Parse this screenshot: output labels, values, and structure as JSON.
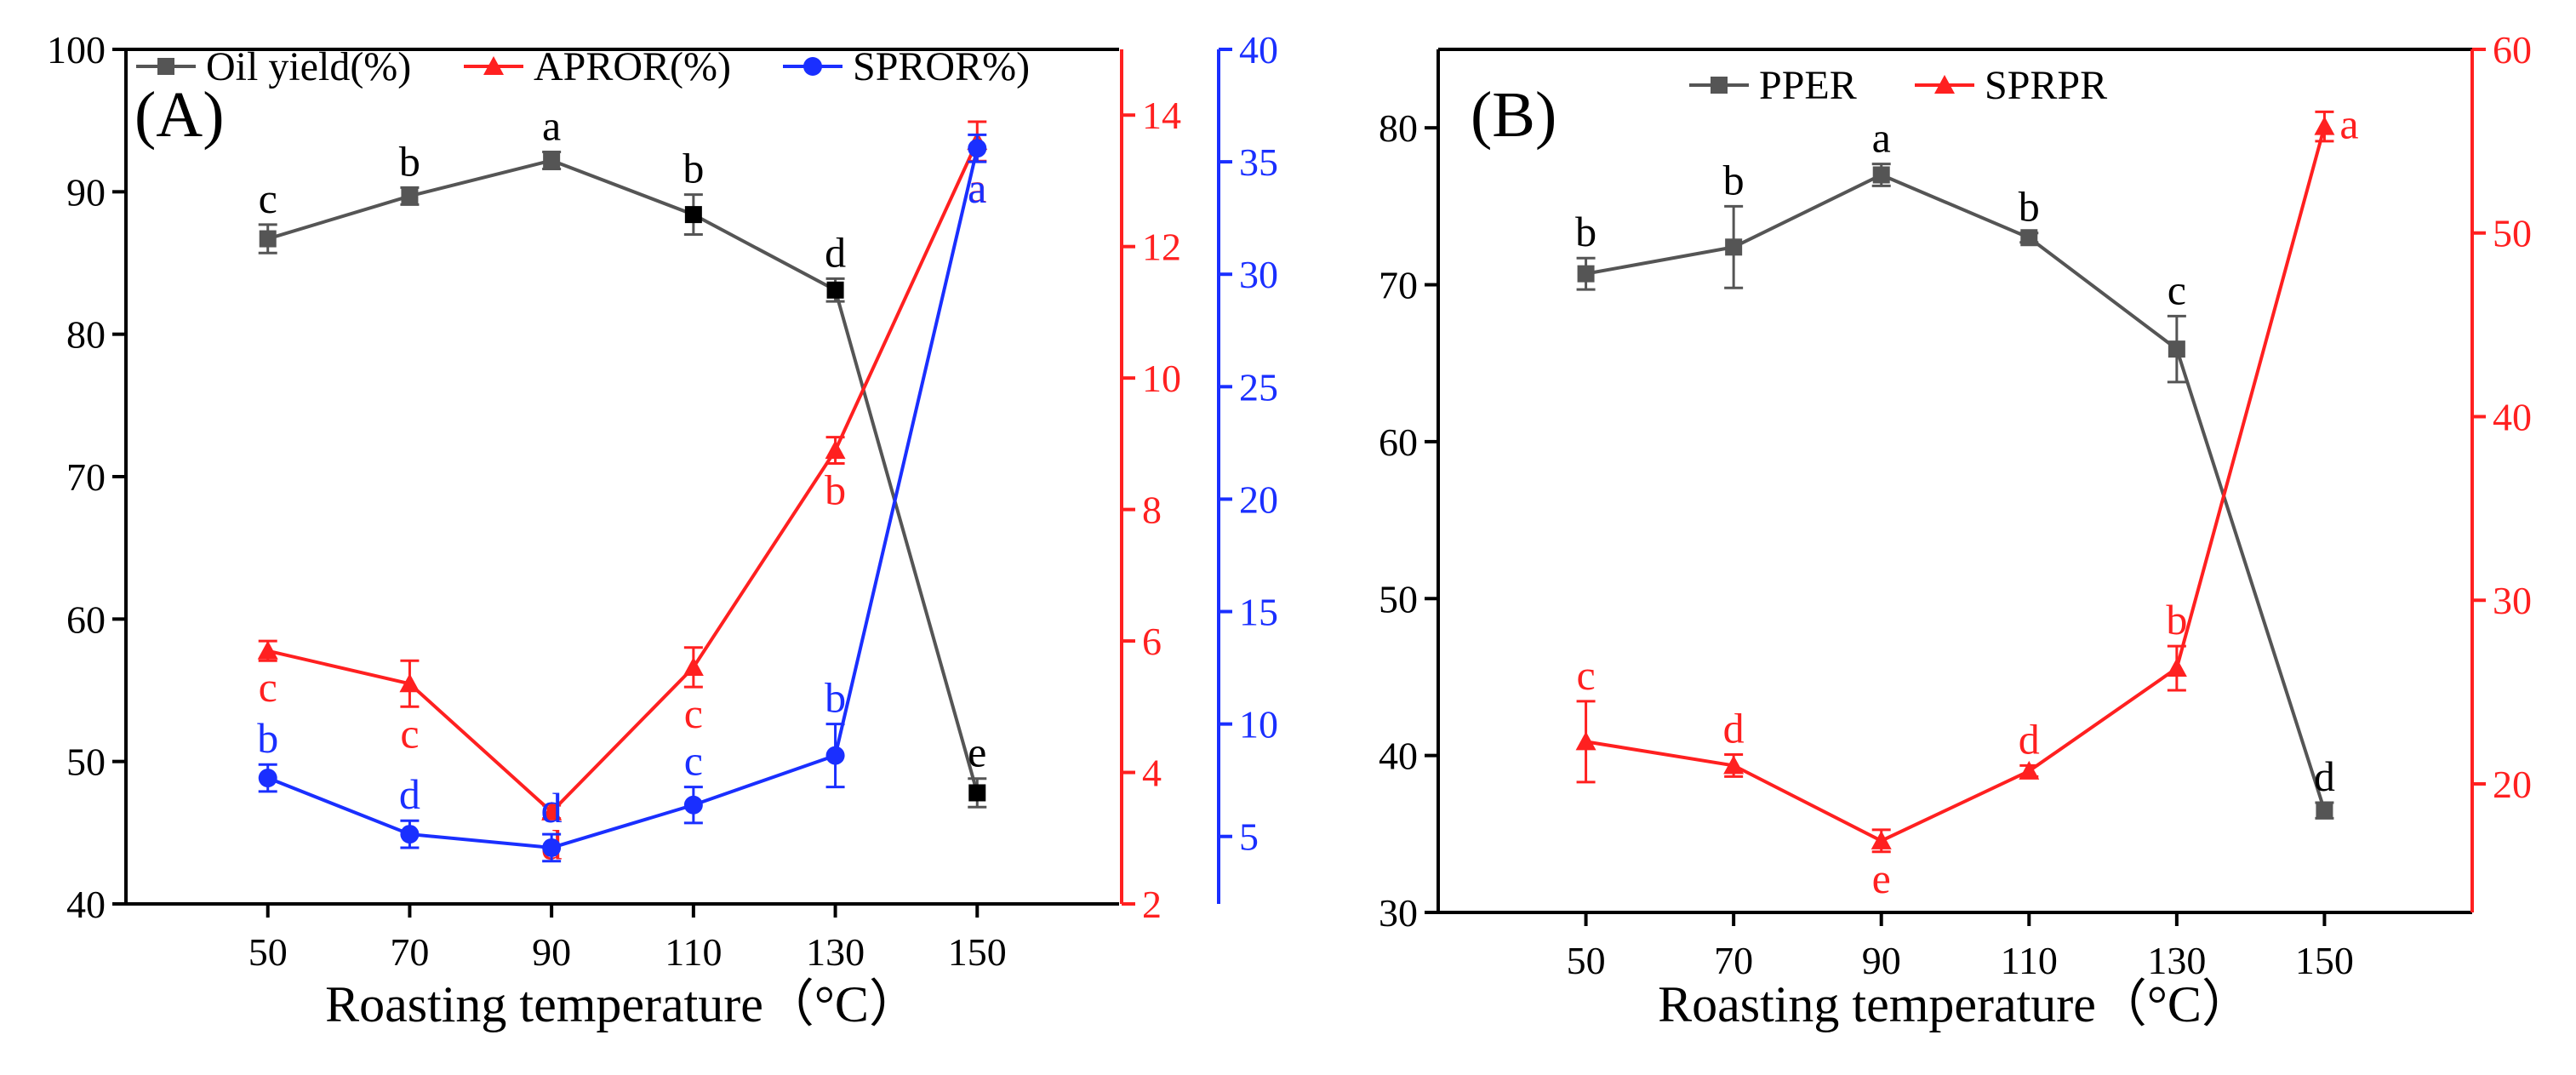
{
  "chart_data": [
    {
      "panel": "(A)",
      "type": "line",
      "xlabel": "Roasting temperature（°C）",
      "categories": [
        50,
        70,
        90,
        110,
        130,
        150
      ],
      "xlim": [
        30,
        170
      ],
      "axes": [
        {
          "id": "y1",
          "side": "left",
          "ylim": [
            40,
            100
          ],
          "ticks": [
            40,
            50,
            60,
            70,
            80,
            90,
            100
          ],
          "color": "#000000"
        },
        {
          "id": "y2",
          "side": "right",
          "ylim": [
            2,
            15
          ],
          "ticks": [
            2,
            4,
            6,
            8,
            10,
            12,
            14
          ],
          "color": "#ff2020"
        },
        {
          "id": "y3",
          "side": "right",
          "ylim": [
            2,
            40
          ],
          "ticks": [
            5,
            10,
            15,
            20,
            25,
            30,
            35,
            40
          ],
          "color": "#1a2fff"
        }
      ],
      "series": [
        {
          "name": "Oil yield(%)",
          "axis": "y1",
          "color": "#555555",
          "marker": "square",
          "values": [
            86.7,
            89.7,
            92.2,
            88.4,
            83.1,
            47.8
          ],
          "errors": [
            1.0,
            0.6,
            0.6,
            1.4,
            0.8,
            1.0
          ],
          "letters": [
            "c",
            "b",
            "a",
            "b",
            "d",
            "e"
          ]
        },
        {
          "name": "APROR(%)",
          "axis": "y2",
          "color": "#ff2020",
          "marker": "triangle",
          "values": [
            5.85,
            5.35,
            3.4,
            5.6,
            8.9,
            13.6
          ],
          "errors": [
            0.15,
            0.35,
            0.1,
            0.3,
            0.2,
            0.3
          ],
          "letters": [
            "c",
            "c",
            "d",
            "c",
            "b",
            "a"
          ]
        },
        {
          "name": "SPROR%)",
          "axis": "y3",
          "color": "#1a2fff",
          "marker": "circle",
          "values": [
            7.6,
            5.1,
            4.5,
            6.4,
            8.6,
            35.6
          ],
          "errors": [
            0.6,
            0.6,
            0.6,
            0.8,
            1.4,
            0.6
          ],
          "letters": [
            "b",
            "d",
            "d",
            "c",
            "b",
            "a"
          ]
        }
      ]
    },
    {
      "panel": "(B)",
      "type": "line",
      "xlabel": "Roasting temperature（°C）",
      "categories": [
        50,
        70,
        90,
        110,
        130,
        150
      ],
      "xlim": [
        30,
        170
      ],
      "axes": [
        {
          "id": "y1",
          "side": "left",
          "ylim": [
            30,
            85
          ],
          "ticks": [
            30,
            40,
            50,
            60,
            70,
            80
          ],
          "color": "#000000"
        },
        {
          "id": "y2",
          "side": "right",
          "ylim": [
            13,
            60
          ],
          "ticks": [
            20,
            30,
            40,
            50,
            60
          ],
          "color": "#ff2020"
        }
      ],
      "series": [
        {
          "name": "PPER",
          "axis": "y1",
          "color": "#555555",
          "marker": "square",
          "values": [
            70.7,
            72.4,
            77.0,
            73.0,
            65.9,
            36.5
          ],
          "errors": [
            1.0,
            2.6,
            0.7,
            0.3,
            2.1,
            0.5
          ],
          "letters": [
            "b",
            "b",
            "a",
            "b",
            "c",
            "d"
          ]
        },
        {
          "name": "SPRPR",
          "axis": "y2",
          "color": "#ff2020",
          "marker": "triangle",
          "values": [
            22.3,
            21.0,
            16.9,
            20.7,
            26.3,
            55.8
          ],
          "errors": [
            2.2,
            0.6,
            0.6,
            0.3,
            1.2,
            0.8
          ],
          "letters": [
            "c",
            "d",
            "e",
            "d",
            "b",
            "a"
          ]
        }
      ]
    }
  ]
}
